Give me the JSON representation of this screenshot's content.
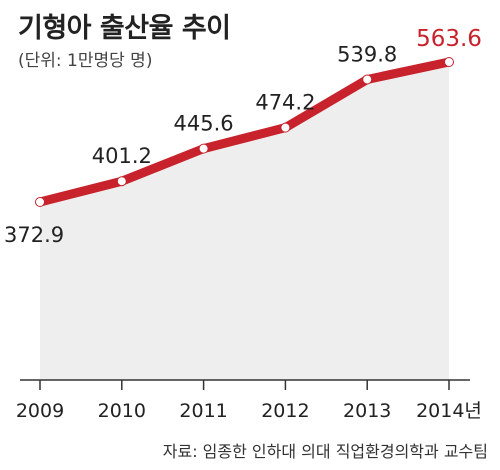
{
  "header": {
    "title": "기형아 출산율 추이",
    "unit": "(단위: 1만명당 명)"
  },
  "footer": {
    "source": "자료: 임종한 인하대 의대 직업환경의학과 교수팀"
  },
  "colors": {
    "line": "#c8232c",
    "highlight_label": "#c8232c",
    "area": "#eeeeee",
    "axis": "#333333",
    "text": "#222222"
  },
  "chart_data": {
    "type": "area",
    "title": "기형아 출산율 추이",
    "subtitle": "(단위: 1만명당 명)",
    "categories": [
      "2009",
      "2010",
      "2011",
      "2012",
      "2013",
      "2014년"
    ],
    "series": [
      {
        "values": [
          372.9,
          401.2,
          445.6,
          474.2,
          539.8,
          563.6
        ]
      }
    ],
    "data_labels": [
      "372.9",
      "401.2",
      "445.6",
      "474.2",
      "539.8",
      "563.6"
    ],
    "highlight_index": 5,
    "grid": false,
    "legend": "none"
  }
}
